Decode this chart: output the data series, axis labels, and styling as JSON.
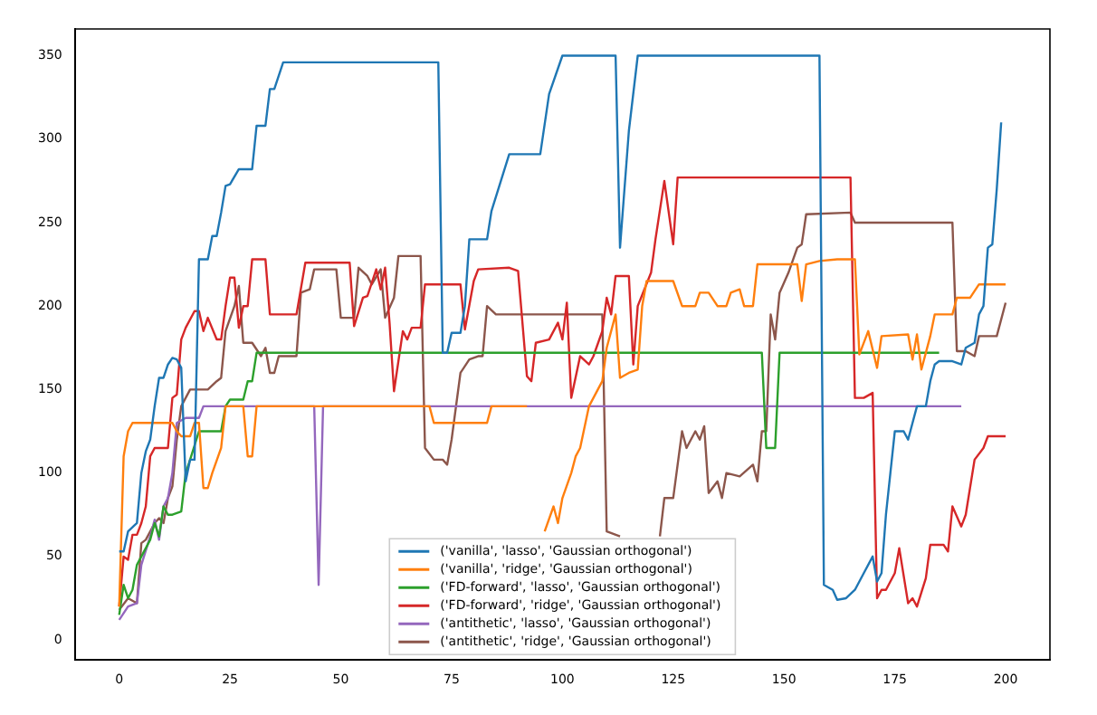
{
  "chart_data": {
    "type": "line",
    "xlim": [
      -10,
      210
    ],
    "ylim": [
      -12,
      366
    ],
    "xticks": [
      0,
      25,
      50,
      75,
      100,
      125,
      150,
      175,
      200
    ],
    "yticks": [
      0,
      50,
      100,
      150,
      200,
      250,
      300,
      350
    ],
    "legend": "bottom",
    "series": [
      {
        "name": "('vanilla', 'lasso', 'Gaussian orthogonal')",
        "color": "#1f77b4",
        "x": [
          0,
          1,
          2,
          4,
          5,
          6,
          7,
          8,
          9,
          10,
          11,
          12,
          13,
          14,
          15,
          16,
          17,
          18,
          20,
          21,
          22,
          23,
          24,
          25,
          27,
          30,
          31,
          33,
          34,
          35,
          37,
          72,
          73,
          74,
          75,
          77,
          78,
          79,
          83,
          84,
          88,
          95,
          97,
          100,
          112,
          113,
          115,
          117,
          158,
          159,
          161,
          162,
          164,
          166,
          168,
          170,
          171,
          172,
          173,
          174,
          175,
          177,
          178,
          179,
          180,
          182,
          183,
          184,
          185,
          188,
          190,
          191,
          193,
          194,
          195,
          196,
          197,
          198,
          199
        ],
        "values": [
          53,
          53,
          65,
          70,
          100,
          113,
          120,
          140,
          157,
          157,
          165,
          169,
          168,
          163,
          95,
          108,
          108,
          228,
          228,
          242,
          242,
          256,
          272,
          273,
          282,
          282,
          308,
          308,
          330,
          330,
          346,
          346,
          172,
          172,
          184,
          184,
          200,
          240,
          240,
          257,
          291,
          291,
          327,
          350,
          350,
          235,
          305,
          350,
          350,
          33,
          30,
          24,
          25,
          30,
          40,
          50,
          35,
          40,
          75,
          100,
          125,
          125,
          120,
          130,
          140,
          140,
          155,
          165,
          167,
          167,
          165,
          175,
          178,
          195,
          200,
          235,
          237,
          270,
          310
        ]
      },
      {
        "name": "('vanilla', 'ridge', 'Gaussian orthogonal')",
        "color": "#ff7f0e",
        "x": [
          0,
          1,
          2,
          3,
          12,
          13,
          14,
          16,
          17,
          18,
          19,
          20,
          21,
          23,
          24,
          28,
          29,
          30,
          31,
          70,
          71,
          83,
          84,
          92,
          93,
          95,
          96,
          98,
          99,
          100,
          102,
          103,
          104,
          106,
          108,
          109,
          110,
          112,
          113,
          115,
          117,
          118,
          119,
          125,
          127,
          130,
          131,
          133,
          135,
          137,
          138,
          140,
          141,
          143,
          144,
          153,
          154,
          155,
          158,
          162,
          166,
          167,
          169,
          171,
          172,
          178,
          179,
          180,
          181,
          183,
          184,
          188,
          189,
          192,
          194,
          200
        ],
        "values": [
          20,
          110,
          125,
          130,
          130,
          125,
          122,
          122,
          130,
          130,
          91,
          91,
          100,
          115,
          140,
          140,
          110,
          110,
          140,
          140,
          130,
          130,
          140,
          140,
          null,
          null,
          65,
          80,
          70,
          85,
          100,
          110,
          115,
          140,
          150,
          155,
          175,
          195,
          157,
          160,
          162,
          200,
          215,
          215,
          200,
          200,
          208,
          208,
          200,
          200,
          208,
          210,
          200,
          200,
          225,
          225,
          203,
          225,
          227,
          228,
          228,
          171,
          185,
          163,
          182,
          183,
          168,
          183,
          162,
          182,
          195,
          195,
          205,
          205,
          213,
          213
        ]
      },
      {
        "name": "('FD-forward', 'lasso', 'Gaussian orthogonal')",
        "color": "#2ca02c",
        "x": [
          0,
          1,
          2,
          3,
          4,
          5,
          7,
          8,
          9,
          10,
          11,
          12,
          14,
          15,
          16,
          18,
          23,
          24,
          25,
          28,
          29,
          30,
          31,
          145,
          146,
          148,
          149,
          185
        ],
        "values": [
          15,
          33,
          25,
          30,
          45,
          50,
          60,
          70,
          62,
          80,
          75,
          75,
          77,
          100,
          108,
          125,
          125,
          140,
          144,
          144,
          155,
          155,
          172,
          172,
          115,
          115,
          172,
          172
        ]
      },
      {
        "name": "('FD-forward', 'ridge', 'Gaussian orthogonal')",
        "color": "#d62728",
        "x": [
          0,
          1,
          2,
          3,
          4,
          5,
          6,
          7,
          8,
          11,
          12,
          13,
          14,
          15,
          17,
          18,
          19,
          20,
          22,
          23,
          24,
          25,
          26,
          27,
          28,
          29,
          30,
          33,
          34,
          40,
          42,
          52,
          53,
          55,
          56,
          58,
          59,
          60,
          61,
          62,
          64,
          65,
          66,
          68,
          69,
          77,
          78,
          80,
          81,
          88,
          90,
          92,
          93,
          94,
          97,
          99,
          100,
          101,
          102,
          104,
          106,
          107,
          109,
          110,
          111,
          112,
          115,
          116,
          117,
          120,
          121,
          123,
          125,
          126,
          165,
          166,
          168,
          170,
          171,
          172,
          173,
          175,
          176,
          178,
          179,
          180,
          182,
          183,
          186,
          187,
          188,
          190,
          191,
          193,
          195,
          196,
          200
        ],
        "values": [
          20,
          50,
          48,
          63,
          63,
          70,
          80,
          110,
          115,
          115,
          145,
          147,
          180,
          187,
          197,
          197,
          185,
          193,
          180,
          180,
          200,
          217,
          217,
          187,
          200,
          200,
          228,
          228,
          195,
          195,
          226,
          226,
          188,
          205,
          206,
          222,
          210,
          223,
          190,
          149,
          185,
          180,
          187,
          187,
          213,
          213,
          186,
          215,
          222,
          223,
          221,
          158,
          155,
          178,
          180,
          190,
          180,
          202,
          145,
          170,
          165,
          170,
          185,
          205,
          195,
          218,
          218,
          165,
          200,
          220,
          240,
          275,
          237,
          277,
          277,
          145,
          145,
          148,
          25,
          30,
          30,
          40,
          55,
          22,
          25,
          20,
          37,
          57,
          57,
          53,
          80,
          68,
          75,
          108,
          115,
          122,
          122
        ]
      },
      {
        "name": "('antithetic', 'lasso', 'Gaussian orthogonal')",
        "color": "#9467bd",
        "x": [
          0,
          2,
          4,
          5,
          7,
          8,
          9,
          10,
          11,
          12,
          13,
          15,
          18,
          19,
          44,
          45,
          46,
          190
        ],
        "values": [
          12,
          20,
          22,
          45,
          62,
          72,
          60,
          80,
          85,
          100,
          130,
          133,
          133,
          140,
          140,
          33,
          140,
          140
        ]
      },
      {
        "name": "('antithetic', 'ridge', 'Gaussian orthogonal')",
        "color": "#8c564b",
        "x": [
          0,
          2,
          4,
          5,
          6,
          8,
          9,
          10,
          11,
          12,
          13,
          14,
          16,
          20,
          22,
          23,
          24,
          26,
          27,
          28,
          30,
          32,
          33,
          34,
          35,
          36,
          40,
          41,
          43,
          44,
          49,
          50,
          53,
          54,
          56,
          57,
          59,
          60,
          62,
          63,
          68,
          69,
          71,
          73,
          74,
          75,
          77,
          79,
          81,
          82,
          83,
          85,
          109,
          110,
          113,
          117,
          122,
          123,
          125,
          126,
          127,
          128,
          130,
          131,
          132,
          133,
          135,
          136,
          137,
          140,
          143,
          144,
          145,
          146,
          147,
          148,
          149,
          151,
          153,
          154,
          155,
          165,
          166,
          188,
          189,
          191,
          193,
          194,
          198,
          200
        ],
        "values": [
          18,
          25,
          22,
          58,
          60,
          70,
          73,
          70,
          85,
          92,
          120,
          140,
          150,
          150,
          155,
          157,
          185,
          200,
          212,
          178,
          178,
          170,
          175,
          160,
          160,
          170,
          170,
          208,
          210,
          222,
          222,
          193,
          193,
          223,
          218,
          213,
          222,
          193,
          205,
          230,
          230,
          115,
          108,
          108,
          105,
          120,
          160,
          168,
          170,
          170,
          200,
          195,
          195,
          65,
          62,
          null,
          62,
          85,
          85,
          105,
          125,
          115,
          125,
          120,
          128,
          88,
          95,
          85,
          100,
          98,
          105,
          95,
          125,
          125,
          195,
          180,
          208,
          220,
          235,
          237,
          255,
          256,
          250,
          250,
          173,
          173,
          170,
          182,
          182,
          202
        ]
      }
    ]
  }
}
